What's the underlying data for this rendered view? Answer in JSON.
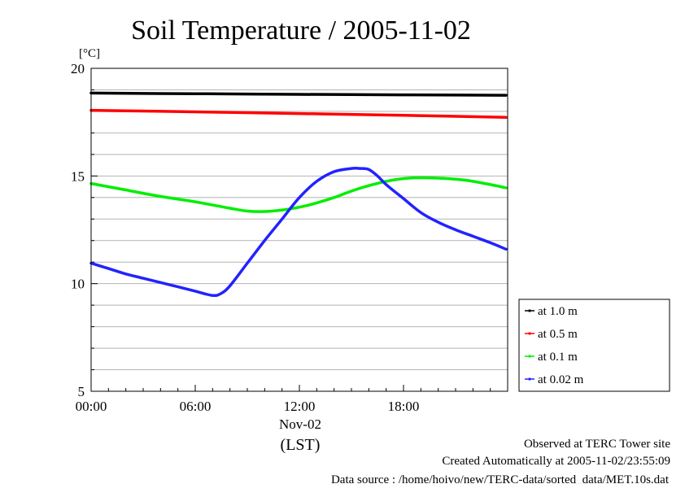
{
  "chart_data": {
    "type": "line",
    "title": "Soil Temperature / 2005-11-02",
    "ylabel": "[°C]",
    "xlabel": "(LST)",
    "xlim": [
      0,
      24
    ],
    "ylim": [
      5,
      20
    ],
    "grid": true,
    "x_ticks": [
      {
        "value": 0,
        "label": "00:00"
      },
      {
        "value": 6,
        "label": "06:00"
      },
      {
        "value": 12,
        "label": "12:00"
      },
      {
        "value": 18,
        "label": "18:00"
      }
    ],
    "date_label": "Nov-02",
    "y_ticks": [
      {
        "value": 5,
        "label": "5"
      },
      {
        "value": 10,
        "label": "10"
      },
      {
        "value": 15,
        "label": "15"
      },
      {
        "value": 20,
        "label": "20"
      }
    ],
    "legend_position": "right",
    "series": [
      {
        "name": "at 1.0 m",
        "color": "#000000",
        "x": [
          0,
          6,
          12,
          18,
          23.9
        ],
        "y": [
          18.85,
          18.82,
          18.79,
          18.77,
          18.75
        ]
      },
      {
        "name": "at 0.5 m",
        "color": "#ff0000",
        "x": [
          0,
          6,
          12,
          18,
          23.9
        ],
        "y": [
          18.05,
          17.98,
          17.9,
          17.82,
          17.72
        ]
      },
      {
        "name": "at 0.1 m",
        "color": "#00ee00",
        "x": [
          0,
          2,
          4,
          6,
          8,
          9,
          10,
          11,
          12,
          13,
          14,
          15,
          16,
          17,
          18,
          19,
          20,
          21,
          22,
          23,
          23.9
        ],
        "y": [
          14.65,
          14.35,
          14.05,
          13.8,
          13.5,
          13.37,
          13.35,
          13.42,
          13.55,
          13.75,
          14.0,
          14.3,
          14.55,
          14.75,
          14.88,
          14.92,
          14.9,
          14.85,
          14.75,
          14.6,
          14.45
        ]
      },
      {
        "name": "at 0.02 m",
        "color": "#2222ff",
        "x": [
          0,
          1,
          2,
          3,
          4,
          5,
          6,
          7,
          7.5,
          8,
          9,
          10,
          11,
          12,
          13,
          14,
          15,
          15.5,
          16,
          16.5,
          17,
          18,
          19,
          20,
          21,
          22,
          23,
          23.9
        ],
        "y": [
          10.95,
          10.7,
          10.45,
          10.25,
          10.05,
          9.85,
          9.65,
          9.45,
          9.55,
          9.9,
          10.95,
          12.0,
          13.0,
          14.0,
          14.75,
          15.2,
          15.35,
          15.35,
          15.3,
          15.0,
          14.6,
          13.95,
          13.3,
          12.85,
          12.5,
          12.2,
          11.9,
          11.6
        ]
      }
    ]
  },
  "footer": {
    "line1": "Observed at TERC Tower site",
    "line2": "Created Automatically at 2005-11-02/23:55:09",
    "line3": "Data source : /home/hoivo/new/TERC-data/sorted_data/MET.10s.dat"
  }
}
